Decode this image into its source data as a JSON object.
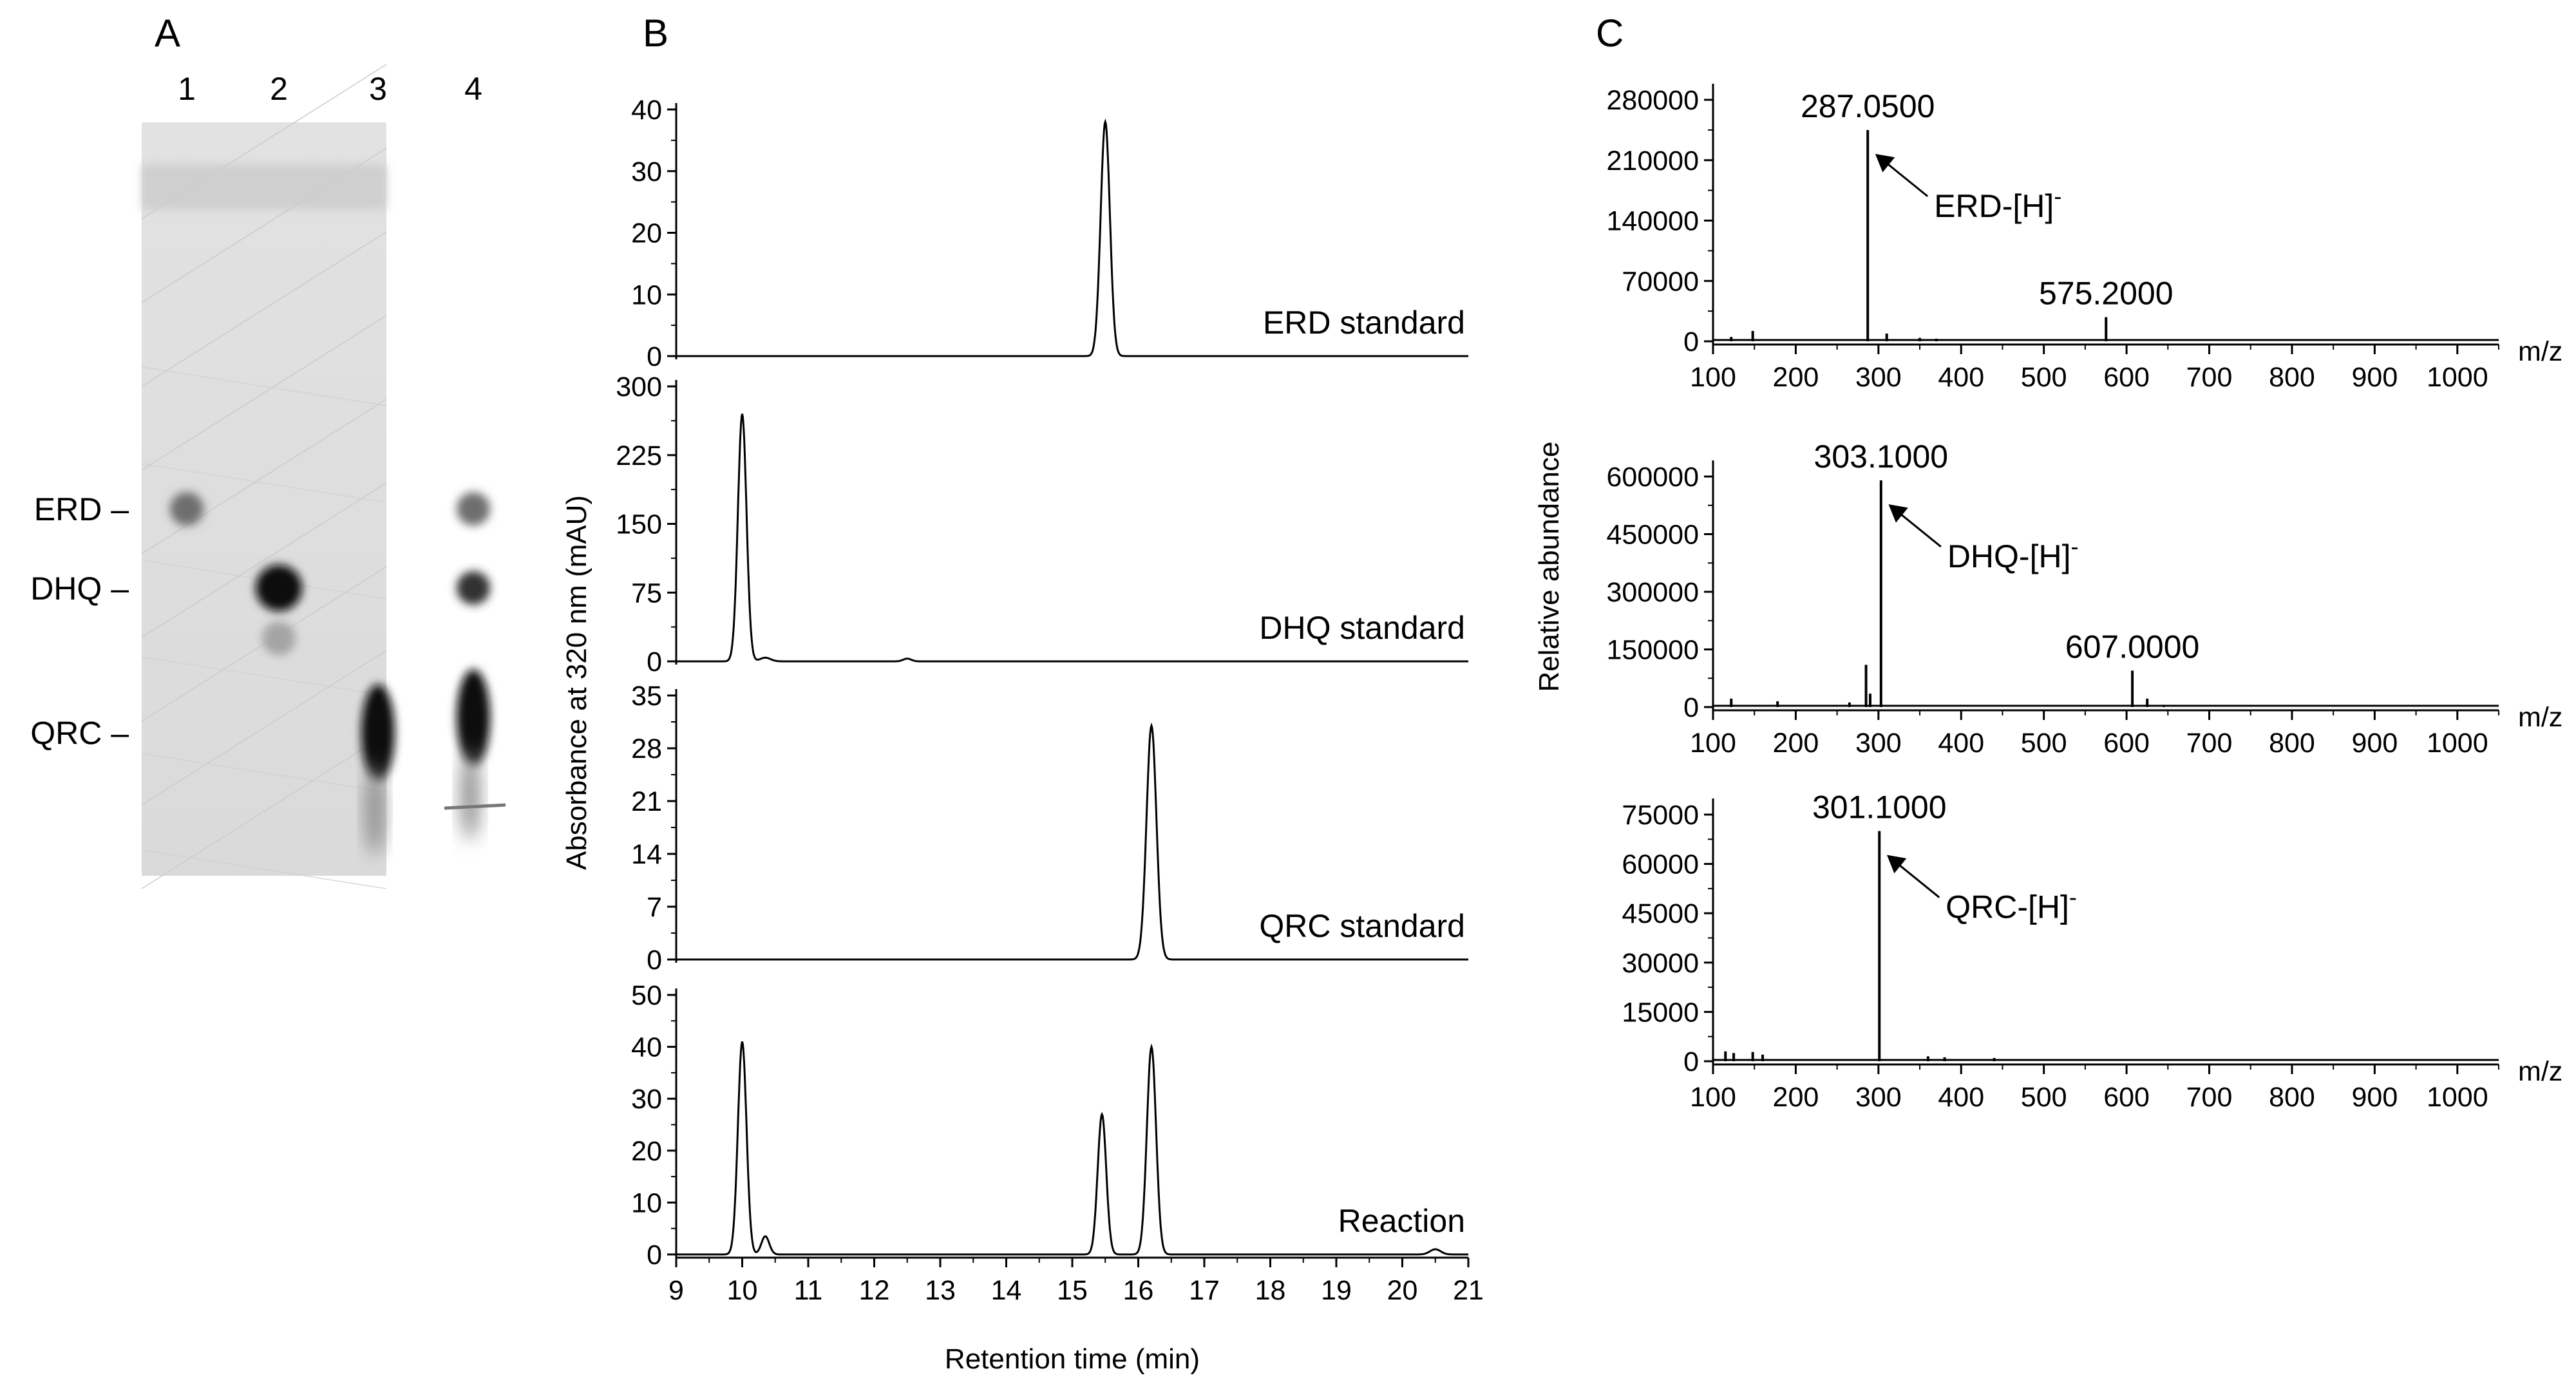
{
  "panels": {
    "A": {
      "letter": "A",
      "lanes": [
        "1",
        "2",
        "3",
        "4"
      ],
      "markers": [
        {
          "label": "ERD –",
          "rf": 0.513
        },
        {
          "label": "DHQ –",
          "rf": 0.618
        },
        {
          "label": "QRC –",
          "rf": 0.81
        }
      ]
    },
    "B": {
      "letter": "B"
    },
    "C": {
      "letter": "C"
    }
  },
  "chart_data": [
    {
      "type": "table",
      "panel": "A",
      "description_id": "tlc",
      "lanes": [
        "1",
        "2",
        "3",
        "4"
      ],
      "spots": [
        {
          "lane": 1,
          "compound": "ERD",
          "rf": 0.513,
          "intensity": 0.45
        },
        {
          "lane": 2,
          "compound": "DHQ",
          "rf": 0.618,
          "intensity": 1.0
        },
        {
          "lane": 2,
          "compound": "minor",
          "rf": 0.685,
          "intensity": 0.18
        },
        {
          "lane": 3,
          "compound": "QRC",
          "rf": 0.81,
          "intensity": 1.0
        },
        {
          "lane": 4,
          "compound": "ERD",
          "rf": 0.513,
          "intensity": 0.45
        },
        {
          "lane": 4,
          "compound": "DHQ",
          "rf": 0.618,
          "intensity": 0.75
        },
        {
          "lane": 4,
          "compound": "QRC",
          "rf": 0.79,
          "intensity": 1.0
        }
      ]
    },
    {
      "type": "line",
      "panel": "B",
      "annotation": "ERD standard",
      "xlim": [
        9,
        21
      ],
      "ylim": [
        0,
        40
      ],
      "yticks": [
        "0",
        "10",
        "20",
        "30",
        "40"
      ],
      "peaks": [
        {
          "x": 15.5,
          "y": 38,
          "w": 0.07
        }
      ],
      "baseline": 0
    },
    {
      "type": "line",
      "panel": "B",
      "annotation": "DHQ standard",
      "xlim": [
        9,
        21
      ],
      "ylim": [
        0,
        300
      ],
      "yticks": [
        "0",
        "75",
        "150",
        "225",
        "300"
      ],
      "peaks": [
        {
          "x": 10.0,
          "y": 270,
          "w": 0.065
        },
        {
          "x": 10.35,
          "y": 4,
          "w": 0.08
        },
        {
          "x": 12.5,
          "y": 3,
          "w": 0.06
        }
      ],
      "baseline": 0
    },
    {
      "type": "line",
      "panel": "B",
      "annotation": "QRC standard",
      "xlim": [
        9,
        21
      ],
      "ylim": [
        0,
        35
      ],
      "yticks": [
        "0",
        "7",
        "14",
        "21",
        "28",
        "35"
      ],
      "peaks": [
        {
          "x": 16.2,
          "y": 31,
          "w": 0.075
        }
      ],
      "baseline": 0
    },
    {
      "type": "line",
      "panel": "B",
      "annotation": "Reaction",
      "xlim": [
        9,
        21
      ],
      "ylim": [
        0,
        50
      ],
      "yticks": [
        "0",
        "10",
        "20",
        "30",
        "40",
        "50"
      ],
      "peaks": [
        {
          "x": 10.0,
          "y": 41,
          "w": 0.065
        },
        {
          "x": 10.35,
          "y": 3.5,
          "w": 0.06
        },
        {
          "x": 15.45,
          "y": 27,
          "w": 0.065
        },
        {
          "x": 16.2,
          "y": 40,
          "w": 0.07
        },
        {
          "x": 20.5,
          "y": 1,
          "w": 0.08
        }
      ],
      "baseline": 0,
      "xticks": [
        "9",
        "10",
        "11",
        "12",
        "13",
        "14",
        "15",
        "16",
        "17",
        "18",
        "19",
        "20",
        "21"
      ],
      "xlabel": "Retention time (min)",
      "ylabel": "Absorbance at 320 nm (mAU)"
    },
    {
      "type": "bar",
      "panel": "C",
      "xlim": [
        100,
        1050
      ],
      "ylim": [
        0,
        280000
      ],
      "yticks": [
        "0",
        "70000",
        "140000",
        "210000",
        "280000"
      ],
      "xticks": [
        "100",
        "200",
        "300",
        "400",
        "500",
        "600",
        "700",
        "800",
        "900",
        "1000"
      ],
      "xunit": "m/z",
      "x": [
        287.05,
        575.2,
        148,
        310,
        122,
        350,
        370
      ],
      "values": [
        245000,
        28000,
        12000,
        9000,
        5000,
        4000,
        3000
      ],
      "labels": [
        {
          "text": "287.0500",
          "x": 287.05,
          "y": 245000
        },
        {
          "text": "575.2000",
          "x": 575.2,
          "y": 28000
        }
      ],
      "ion_label": {
        "base": "ERD-[H]",
        "sup": "-",
        "x": 287.05,
        "y": 245000
      }
    },
    {
      "type": "bar",
      "panel": "C",
      "xlim": [
        100,
        1050
      ],
      "ylim": [
        0,
        600000
      ],
      "yticks": [
        "0",
        "150000",
        "300000",
        "450000",
        "600000"
      ],
      "xticks": [
        "100",
        "200",
        "300",
        "400",
        "500",
        "600",
        "700",
        "800",
        "900",
        "1000"
      ],
      "xunit": "m/z",
      "ylabel": "Relative abundance",
      "x": [
        303.1,
        607.0,
        285,
        290,
        122,
        178,
        265,
        625,
        645
      ],
      "values": [
        590000,
        95000,
        110000,
        35000,
        22000,
        15000,
        12000,
        22000,
        6000
      ],
      "labels": [
        {
          "text": "303.1000",
          "x": 303.1,
          "y": 590000
        },
        {
          "text": "607.0000",
          "x": 607.0,
          "y": 95000
        }
      ],
      "ion_label": {
        "base": "DHQ-[H]",
        "sup": "-",
        "x": 303.1,
        "y": 590000
      }
    },
    {
      "type": "bar",
      "panel": "C",
      "xlim": [
        100,
        1050
      ],
      "ylim": [
        0,
        75000
      ],
      "yticks": [
        "0",
        "15000",
        "30000",
        "45000",
        "60000",
        "75000"
      ],
      "xticks": [
        "100",
        "200",
        "300",
        "400",
        "500",
        "600",
        "700",
        "800",
        "900",
        "1000"
      ],
      "xunit": "m/z",
      "x": [
        301.1,
        115,
        125,
        148,
        160,
        360,
        380,
        440
      ],
      "values": [
        70000,
        3000,
        2500,
        2800,
        2000,
        1500,
        1200,
        1000
      ],
      "labels": [
        {
          "text": "301.1000",
          "x": 301.1,
          "y": 70000
        }
      ],
      "ion_label": {
        "base": "QRC-[H]",
        "sup": "-",
        "x": 301.1,
        "y": 70000
      }
    }
  ]
}
